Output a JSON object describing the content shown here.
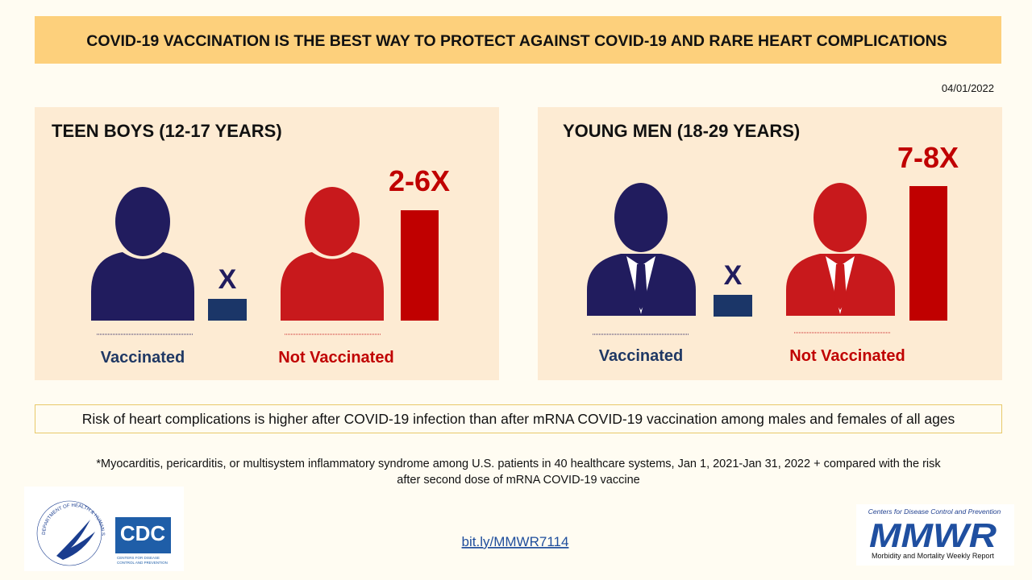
{
  "header": {
    "title": "COVID-19 VACCINATION IS THE BEST WAY TO PROTECT AGAINST COVID-19 AND RARE HEART COMPLICATIONS",
    "date": "04/01/2022"
  },
  "panels": [
    {
      "title": "TEEN BOYS (12-17 YEARS)",
      "vaccinated_marker": "X",
      "multiplier": "2-6X",
      "vaccinated_label": "Vaccinated",
      "not_vaccinated_label": "Not Vaccinated"
    },
    {
      "title": "YOUNG MEN (18-29 YEARS)",
      "vaccinated_marker": "X",
      "multiplier": "7-8X",
      "vaccinated_label": "Vaccinated",
      "not_vaccinated_label": "Not Vaccinated"
    }
  ],
  "risk_note": "Risk of heart complications is higher after COVID-19 infection than after mRNA COVID-19 vaccination among males and females of all ages",
  "footnote": [
    "*Myocarditis, pericarditis, or multisystem inflammatory syndrome among U.S. patients in 40 healthcare systems, Jan 1, 2021-Jan 31, 2022 + compared with the risk",
    "after second dose of mRNA COVID-19 vaccine"
  ],
  "link": "bit.ly/MMWR7114",
  "logos": {
    "hhs_seal": "DEPARTMENT OF HEALTH & HUMAN SERVICES USA",
    "cdc": "CDC",
    "cdc_subtitle": [
      "CENTERS FOR DISEASE",
      "CONTROL AND PREVENTION"
    ],
    "mmwr_top": "Centers for Disease Control and Prevention",
    "mmwr": "MMWR",
    "mmwr_bottom": "Morbidity and Mortality Weekly Report"
  }
}
